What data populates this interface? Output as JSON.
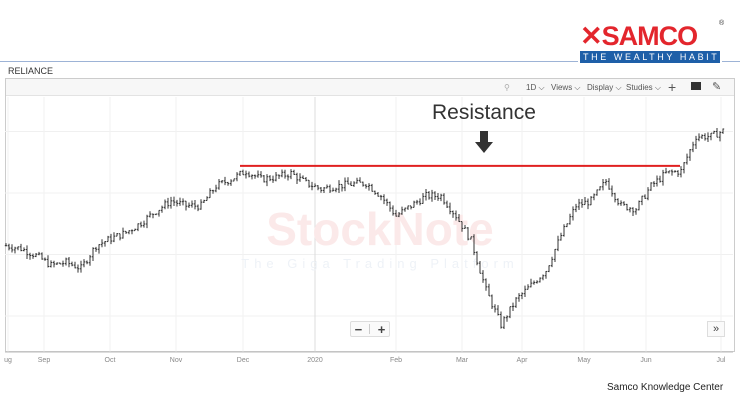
{
  "logo": {
    "brand": "SAMCO",
    "tagline": "THE WEALTHY HABIT",
    "mark": "®"
  },
  "ticker": "RELIANCE",
  "toolbar": {
    "interval": "1D",
    "views": "Views",
    "display": "Display",
    "studies": "Studies",
    "icons": [
      "search-icon",
      "plus-icon",
      "comment-icon",
      "pencil-icon"
    ]
  },
  "watermark": {
    "title": "StockNote",
    "subtitle": "The Giga Trading Platform"
  },
  "annotation": {
    "label": "Resistance",
    "level": 1610,
    "color": "#e02020"
  },
  "zoom": {
    "minus": "−",
    "plus": "+",
    "more": "»"
  },
  "footer": "Samco Knowledge Center",
  "chart_data": {
    "type": "ohlc",
    "title": "",
    "x_tick_labels": [
      "ug",
      "Sep",
      "Oct",
      "Nov",
      "Dec",
      "2020",
      "Feb",
      "Mar",
      "Apr",
      "May",
      "Jun",
      "Jul"
    ],
    "ylim": [
      870,
      1890
    ],
    "grid": true,
    "weekly_closes": [
      1286,
      1274,
      1246,
      1206,
      1218,
      1194,
      1286,
      1315,
      1339,
      1379,
      1427,
      1468,
      1448,
      1448,
      1528,
      1556,
      1589,
      1556,
      1564,
      1580,
      1540,
      1516,
      1528,
      1536,
      1540,
      1488,
      1407,
      1448,
      1488,
      1488,
      1407,
      1307,
      1105,
      964,
      1065,
      1125,
      1186,
      1327,
      1448,
      1468,
      1548,
      1448,
      1436,
      1528,
      1580,
      1589,
      1730,
      1730,
      1758
    ],
    "resistance_line": {
      "value": 1610
    }
  }
}
